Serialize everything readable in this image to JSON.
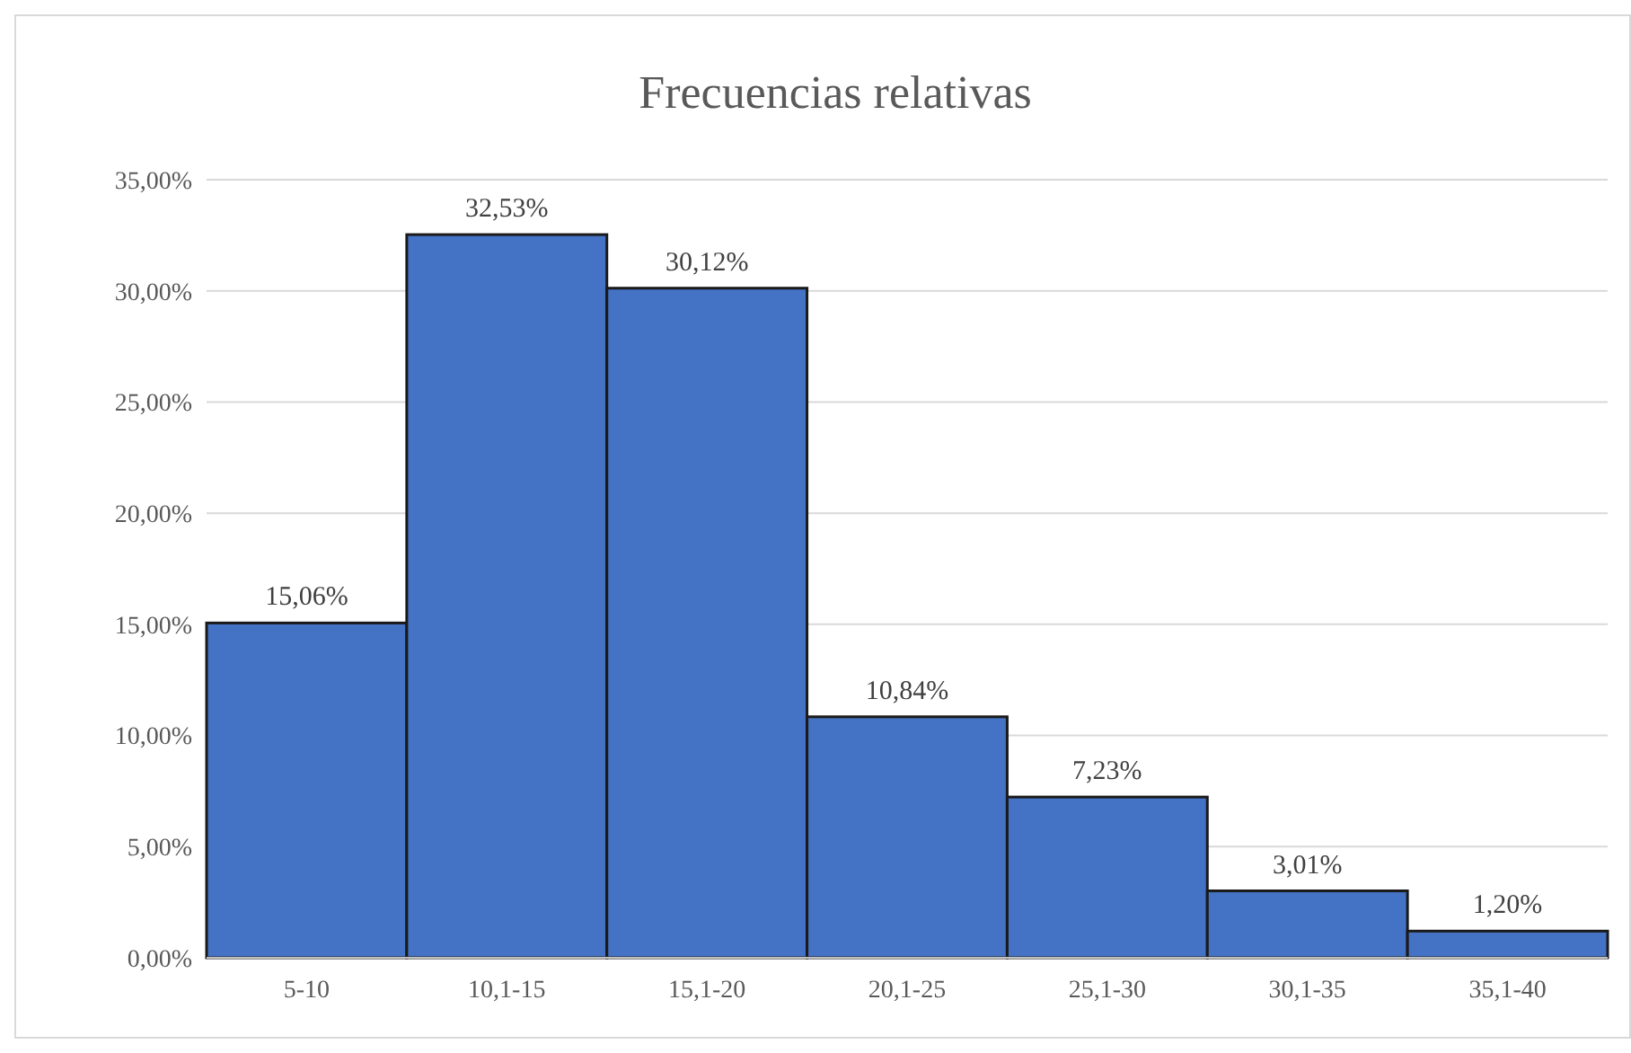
{
  "chart_data": {
    "type": "bar",
    "title": "Frecuencias  relativas",
    "categories": [
      "5-10",
      "10,1-15",
      "15,1-20",
      "20,1-25",
      "25,1-30",
      "30,1-35",
      "35,1-40"
    ],
    "values": [
      15.06,
      32.53,
      30.12,
      10.84,
      7.23,
      3.01,
      1.2
    ],
    "value_labels": [
      "15,06%",
      "32,53%",
      "30,12%",
      "10,84%",
      "7,23%",
      "3,01%",
      "1,20%"
    ],
    "color": "#4472c4",
    "ylim": [
      0,
      35
    ],
    "yticks": [
      {
        "value": 0,
        "label": "0,00%"
      },
      {
        "value": 5,
        "label": "5,00%"
      },
      {
        "value": 10,
        "label": "10,00%"
      },
      {
        "value": 15,
        "label": "15,00%"
      },
      {
        "value": 20,
        "label": "20,00%"
      },
      {
        "value": 25,
        "label": "25,00%"
      },
      {
        "value": 30,
        "label": "30,00%"
      },
      {
        "value": 35,
        "label": "35,00%"
      }
    ],
    "grid": "y"
  }
}
